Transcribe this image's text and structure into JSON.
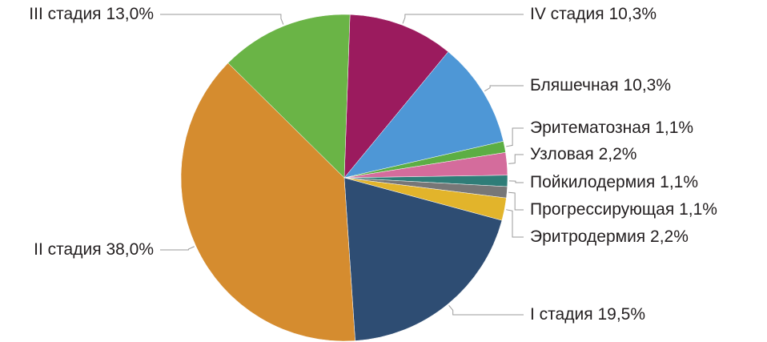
{
  "chart_data": {
    "type": "pie",
    "categories": [
      "IV стадия",
      "Бляшечная",
      "Эритематозная",
      "Узловая",
      "Пойкилодермия",
      "Прогрессирующая",
      "Эритродермия",
      "I стадия",
      "II стадия",
      "III стадия"
    ],
    "values": [
      10.3,
      10.3,
      1.1,
      2.2,
      1.1,
      1.1,
      2.2,
      19.5,
      38.0,
      13.0
    ],
    "value_labels": [
      "10,3%",
      "10,3%",
      "1,1%",
      "2,2%",
      "1,1%",
      "1,1%",
      "2,2%",
      "19,5%",
      "38,0%",
      "13,0%"
    ],
    "colors": [
      "#9b1b5e",
      "#4e97d6",
      "#5cae44",
      "#d46c9c",
      "#2f7d78",
      "#777777",
      "#e2b42b",
      "#2e4d73",
      "#d58c2f",
      "#6ab446"
    ]
  }
}
